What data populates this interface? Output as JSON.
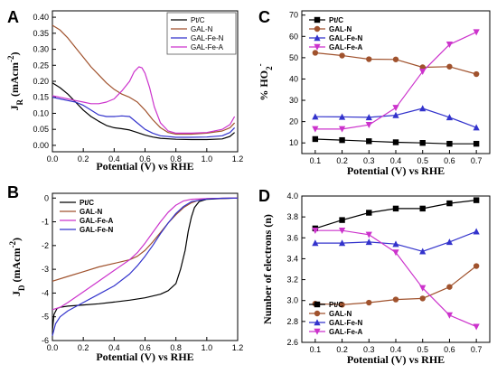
{
  "figure": {
    "panels": [
      "A",
      "B",
      "C",
      "D"
    ]
  },
  "chart_data": [
    {
      "id": "A",
      "type": "line",
      "letter": "A",
      "title": "",
      "xlabel": "Potential (V) vs RHE",
      "ylabel": "J_R (mAcm^-2)",
      "ylabel_main": "J",
      "ylabel_sub": "R",
      "ylabel_unit": "(mAcm",
      "ylabel_sup": "-2",
      "ylabel_close": ")",
      "xlim": [
        0.0,
        1.2
      ],
      "ylim": [
        -0.02,
        0.42
      ],
      "xticks": [
        0.0,
        0.2,
        0.4,
        0.6,
        0.8,
        1.0,
        1.2
      ],
      "xtick_labels": [
        "0.0",
        "0.2",
        "0.4",
        "0.6",
        "0.8",
        "1.0",
        "1.2"
      ],
      "yticks": [
        0.0,
        0.05,
        0.1,
        0.15,
        0.2,
        0.25,
        0.3,
        0.35,
        0.4
      ],
      "ytick_labels": [
        "0.00",
        "0.05",
        "0.10",
        "0.15",
        "0.20",
        "0.25",
        "0.30",
        "0.35",
        "0.40"
      ],
      "legend_position": "top-right",
      "legend_bold": false,
      "markers": false,
      "series": [
        {
          "name": "Pt/C",
          "color": "#000000",
          "x": [
            0.0,
            0.05,
            0.1,
            0.15,
            0.2,
            0.25,
            0.3,
            0.35,
            0.4,
            0.45,
            0.5,
            0.55,
            0.6,
            0.65,
            0.7,
            0.8,
            0.9,
            1.0,
            1.1,
            1.15,
            1.18
          ],
          "y": [
            0.195,
            0.18,
            0.16,
            0.135,
            0.11,
            0.09,
            0.075,
            0.062,
            0.055,
            0.052,
            0.048,
            0.04,
            0.032,
            0.026,
            0.022,
            0.019,
            0.018,
            0.018,
            0.02,
            0.028,
            0.04
          ]
        },
        {
          "name": "GAL-N",
          "color": "#a0522d",
          "x": [
            0.0,
            0.05,
            0.1,
            0.15,
            0.2,
            0.25,
            0.3,
            0.35,
            0.4,
            0.45,
            0.5,
            0.55,
            0.6,
            0.65,
            0.7,
            0.75,
            0.8,
            0.9,
            1.0,
            1.1,
            1.15,
            1.18
          ],
          "y": [
            0.375,
            0.36,
            0.335,
            0.305,
            0.275,
            0.245,
            0.22,
            0.195,
            0.175,
            0.16,
            0.15,
            0.135,
            0.11,
            0.08,
            0.055,
            0.04,
            0.035,
            0.035,
            0.038,
            0.045,
            0.055,
            0.07
          ]
        },
        {
          "name": "GAL-Fe-N",
          "color": "#3333cc",
          "x": [
            0.0,
            0.05,
            0.1,
            0.15,
            0.2,
            0.25,
            0.3,
            0.35,
            0.4,
            0.45,
            0.5,
            0.55,
            0.6,
            0.65,
            0.7,
            0.8,
            0.9,
            1.0,
            1.1,
            1.15,
            1.18
          ],
          "y": [
            0.15,
            0.145,
            0.14,
            0.135,
            0.125,
            0.11,
            0.095,
            0.09,
            0.09,
            0.092,
            0.09,
            0.07,
            0.05,
            0.038,
            0.03,
            0.025,
            0.025,
            0.026,
            0.03,
            0.04,
            0.055
          ]
        },
        {
          "name": "GAL-Fe-A",
          "color": "#cc33cc",
          "x": [
            0.0,
            0.05,
            0.1,
            0.15,
            0.2,
            0.25,
            0.3,
            0.35,
            0.4,
            0.45,
            0.5,
            0.53,
            0.56,
            0.58,
            0.6,
            0.63,
            0.66,
            0.7,
            0.75,
            0.8,
            0.9,
            1.0,
            1.1,
            1.15,
            1.18
          ],
          "y": [
            0.155,
            0.15,
            0.145,
            0.14,
            0.135,
            0.13,
            0.13,
            0.135,
            0.145,
            0.17,
            0.2,
            0.23,
            0.245,
            0.242,
            0.225,
            0.18,
            0.12,
            0.07,
            0.045,
            0.038,
            0.038,
            0.04,
            0.05,
            0.065,
            0.09
          ]
        }
      ]
    },
    {
      "id": "B",
      "type": "line",
      "letter": "B",
      "title": "",
      "xlabel": "Potential (V) vs RHE",
      "ylabel": "J_D (mAcm^-2)",
      "ylabel_main": "J",
      "ylabel_sub": "D",
      "ylabel_unit": "(mAcm",
      "ylabel_sup": "-2",
      "ylabel_close": ")",
      "xlim": [
        0.0,
        1.2
      ],
      "ylim": [
        -6,
        0.2
      ],
      "xticks": [
        0.0,
        0.2,
        0.4,
        0.6,
        0.8,
        1.0,
        1.2
      ],
      "xtick_labels": [
        "0.0",
        "0.2",
        "0.4",
        "0.6",
        "0.8",
        "1.0",
        "1.2"
      ],
      "yticks": [
        0,
        -1,
        -2,
        -3,
        -4,
        -5,
        -6
      ],
      "ytick_labels": [
        "0",
        "-1",
        "-2",
        "-3",
        "-4",
        "-5",
        "-6"
      ],
      "legend_position": "top-left",
      "legend_bold": true,
      "markers": false,
      "series": [
        {
          "name": "Pt/C",
          "color": "#000000",
          "x": [
            0.0,
            0.01,
            0.03,
            0.05,
            0.1,
            0.2,
            0.3,
            0.4,
            0.5,
            0.6,
            0.7,
            0.75,
            0.8,
            0.83,
            0.86,
            0.88,
            0.9,
            0.92,
            0.95,
            1.0,
            1.1,
            1.2
          ],
          "y": [
            -5.6,
            -4.9,
            -4.65,
            -4.6,
            -4.55,
            -4.5,
            -4.45,
            -4.38,
            -4.3,
            -4.2,
            -4.05,
            -3.9,
            -3.6,
            -3.0,
            -2.2,
            -1.4,
            -0.8,
            -0.4,
            -0.15,
            -0.05,
            -0.02,
            0.0
          ]
        },
        {
          "name": "GAL-N",
          "color": "#a0522d",
          "x": [
            0.0,
            0.1,
            0.2,
            0.3,
            0.4,
            0.5,
            0.55,
            0.6,
            0.65,
            0.7,
            0.75,
            0.8,
            0.85,
            0.9,
            0.95,
            1.0,
            1.1,
            1.2
          ],
          "y": [
            -3.5,
            -3.3,
            -3.1,
            -2.9,
            -2.75,
            -2.6,
            -2.45,
            -2.2,
            -1.85,
            -1.45,
            -1.05,
            -0.7,
            -0.4,
            -0.2,
            -0.08,
            -0.03,
            -0.01,
            0.0
          ]
        },
        {
          "name": "GAL-Fe-A",
          "color": "#cc33cc",
          "x": [
            0.0,
            0.05,
            0.1,
            0.2,
            0.3,
            0.4,
            0.5,
            0.55,
            0.6,
            0.65,
            0.7,
            0.75,
            0.8,
            0.85,
            0.9,
            1.0,
            1.1,
            1.2
          ],
          "y": [
            -4.7,
            -4.6,
            -4.4,
            -3.95,
            -3.5,
            -3.05,
            -2.6,
            -2.3,
            -1.9,
            -1.45,
            -1.0,
            -0.6,
            -0.3,
            -0.12,
            -0.05,
            -0.02,
            -0.01,
            0.0
          ]
        },
        {
          "name": "GAL-Fe-N",
          "color": "#3333cc",
          "x": [
            0.0,
            0.02,
            0.05,
            0.1,
            0.2,
            0.3,
            0.4,
            0.5,
            0.55,
            0.6,
            0.65,
            0.7,
            0.75,
            0.8,
            0.85,
            0.9,
            1.0,
            1.1,
            1.2
          ],
          "y": [
            -5.8,
            -5.3,
            -5.0,
            -4.75,
            -4.4,
            -4.05,
            -3.7,
            -3.2,
            -2.85,
            -2.45,
            -2.0,
            -1.5,
            -1.05,
            -0.65,
            -0.35,
            -0.15,
            -0.04,
            -0.01,
            0.0
          ]
        }
      ]
    },
    {
      "id": "C",
      "type": "line",
      "letter": "C",
      "title": "",
      "xlabel": "Potential (V) vs RHE",
      "ylabel": "% HO2-",
      "ylabel_main": "% HO",
      "ylabel_sub": "2",
      "ylabel_unit": "",
      "ylabel_sup": "-",
      "ylabel_close": "",
      "xlim": [
        0.05,
        0.75
      ],
      "ylim": [
        5,
        72
      ],
      "xticks": [
        0.1,
        0.2,
        0.3,
        0.4,
        0.5,
        0.6,
        0.7
      ],
      "xtick_labels": [
        "0.1",
        "0.2",
        "0.3",
        "0.4",
        "0.5",
        "0.6",
        "0.7"
      ],
      "yticks": [
        10,
        20,
        30,
        40,
        50,
        60,
        70
      ],
      "ytick_labels": [
        "10",
        "20",
        "30",
        "40",
        "50",
        "60",
        "70"
      ],
      "legend_position": "top-left",
      "legend_bold": true,
      "markers": true,
      "series": [
        {
          "name": "Pt/C",
          "color": "#000000",
          "marker": "square",
          "x": [
            0.1,
            0.2,
            0.3,
            0.4,
            0.5,
            0.6,
            0.7
          ],
          "y": [
            11.8,
            11.3,
            10.8,
            10.3,
            10.0,
            9.6,
            9.6
          ]
        },
        {
          "name": "GAL-N",
          "color": "#a0522d",
          "marker": "circle",
          "x": [
            0.1,
            0.2,
            0.3,
            0.4,
            0.5,
            0.6,
            0.7
          ],
          "y": [
            52.3,
            51.0,
            49.3,
            49.2,
            45.5,
            45.8,
            42.3
          ]
        },
        {
          "name": "GAL-Fe-N",
          "color": "#3333cc",
          "marker": "triangle-up",
          "x": [
            0.1,
            0.2,
            0.3,
            0.4,
            0.5,
            0.6,
            0.7
          ],
          "y": [
            22.3,
            22.2,
            22.0,
            23.0,
            26.2,
            22.0,
            17.2
          ]
        },
        {
          "name": "GAL-Fe-A",
          "color": "#cc33cc",
          "marker": "triangle-down",
          "x": [
            0.1,
            0.2,
            0.3,
            0.4,
            0.5,
            0.6,
            0.7
          ],
          "y": [
            16.5,
            16.5,
            18.5,
            26.5,
            43.5,
            56.2,
            62.0
          ]
        }
      ]
    },
    {
      "id": "D",
      "type": "line",
      "letter": "D",
      "title": "",
      "xlabel": "Potential (V) vs RHE",
      "ylabel": "Number of electrons (n)",
      "ylabel_main": "Number of electrons (n)",
      "ylabel_sub": "",
      "ylabel_unit": "",
      "ylabel_sup": "",
      "ylabel_close": "",
      "xlim": [
        0.05,
        0.75
      ],
      "ylim": [
        2.6,
        4.0
      ],
      "xticks": [
        0.1,
        0.2,
        0.3,
        0.4,
        0.5,
        0.6,
        0.7
      ],
      "xtick_labels": [
        "0.1",
        "0.2",
        "0.3",
        "0.4",
        "0.5",
        "0.6",
        "0.7"
      ],
      "yticks": [
        2.6,
        2.8,
        3.0,
        3.2,
        3.4,
        3.6,
        3.8,
        4.0
      ],
      "ytick_labels": [
        "2.6",
        "2.8",
        "3.0",
        "3.2",
        "3.4",
        "3.6",
        "3.8",
        "4.0"
      ],
      "legend_position": "bottom-left",
      "legend_bold": true,
      "markers": true,
      "series": [
        {
          "name": "Pt/C",
          "color": "#000000",
          "marker": "square",
          "x": [
            0.1,
            0.2,
            0.3,
            0.4,
            0.5,
            0.6,
            0.7
          ],
          "y": [
            3.69,
            3.77,
            3.84,
            3.88,
            3.88,
            3.93,
            3.96
          ]
        },
        {
          "name": "GAL-N",
          "color": "#a0522d",
          "marker": "circle",
          "x": [
            0.1,
            0.2,
            0.3,
            0.4,
            0.5,
            0.6,
            0.7
          ],
          "y": [
            2.97,
            2.96,
            2.98,
            3.01,
            3.02,
            3.13,
            3.33
          ]
        },
        {
          "name": "GAL-Fe-N",
          "color": "#3333cc",
          "marker": "triangle-up",
          "x": [
            0.1,
            0.2,
            0.3,
            0.4,
            0.5,
            0.6,
            0.7
          ],
          "y": [
            3.55,
            3.55,
            3.56,
            3.54,
            3.47,
            3.56,
            3.66
          ]
        },
        {
          "name": "GAL-Fe-A",
          "color": "#cc33cc",
          "marker": "triangle-down",
          "x": [
            0.1,
            0.2,
            0.3,
            0.4,
            0.5,
            0.6,
            0.7
          ],
          "y": [
            3.67,
            3.67,
            3.63,
            3.46,
            3.12,
            2.86,
            2.75
          ]
        }
      ]
    }
  ]
}
